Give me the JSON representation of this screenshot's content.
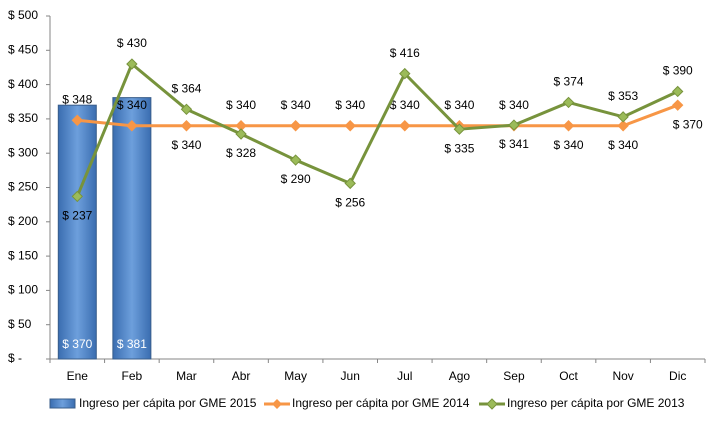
{
  "chart_data": {
    "type": "combo",
    "categories": [
      "Ene",
      "Feb",
      "Mar",
      "Abr",
      "May",
      "Jun",
      "Jul",
      "Ago",
      "Sep",
      "Oct",
      "Nov",
      "Dic"
    ],
    "series": [
      {
        "name": "Ingreso per cápita por GME 2015",
        "type": "bar",
        "color": "#4f81bd",
        "values": [
          370,
          381,
          null,
          null,
          null,
          null,
          null,
          null,
          null,
          null,
          null,
          null
        ],
        "value_labels": [
          "$ 370",
          "$ 381",
          null,
          null,
          null,
          null,
          null,
          null,
          null,
          null,
          null,
          null
        ]
      },
      {
        "name": "Ingreso per cápita por GME 2014",
        "type": "line",
        "color": "#f79646",
        "values": [
          348,
          340,
          340,
          340,
          340,
          340,
          340,
          340,
          340,
          340,
          340,
          370
        ],
        "value_labels": [
          "$ 348",
          "$ 340",
          "$ 340",
          "$ 340",
          "$ 340",
          "$ 340",
          "$ 340",
          "$ 340",
          "$ 340",
          "$ 340",
          "$ 340",
          "$ 370"
        ]
      },
      {
        "name": "Ingreso per cápita por GME 2013",
        "type": "line",
        "color": "#77933c",
        "values": [
          237,
          430,
          364,
          328,
          290,
          256,
          416,
          335,
          341,
          374,
          353,
          390
        ],
        "value_labels": [
          "$ 237",
          "$ 430",
          "$ 364",
          "$ 328",
          "$ 290",
          "$ 256",
          "$ 416",
          "$ 335",
          "$ 341",
          "$ 374",
          "$ 353",
          "$ 390"
        ]
      }
    ],
    "ylim": [
      0,
      500
    ],
    "yticks": [
      {
        "value": 0,
        "label": "$ -"
      },
      {
        "value": 50,
        "label": "$ 50"
      },
      {
        "value": 100,
        "label": "$ 100"
      },
      {
        "value": 150,
        "label": "$ 150"
      },
      {
        "value": 200,
        "label": "$ 200"
      },
      {
        "value": 250,
        "label": "$ 250"
      },
      {
        "value": 300,
        "label": "$ 300"
      },
      {
        "value": 350,
        "label": "$ 350"
      },
      {
        "value": 400,
        "label": "$ 400"
      },
      {
        "value": 450,
        "label": "$ 450"
      },
      {
        "value": 500,
        "label": "$ 500"
      }
    ],
    "grid": false,
    "legend": "bottom"
  }
}
